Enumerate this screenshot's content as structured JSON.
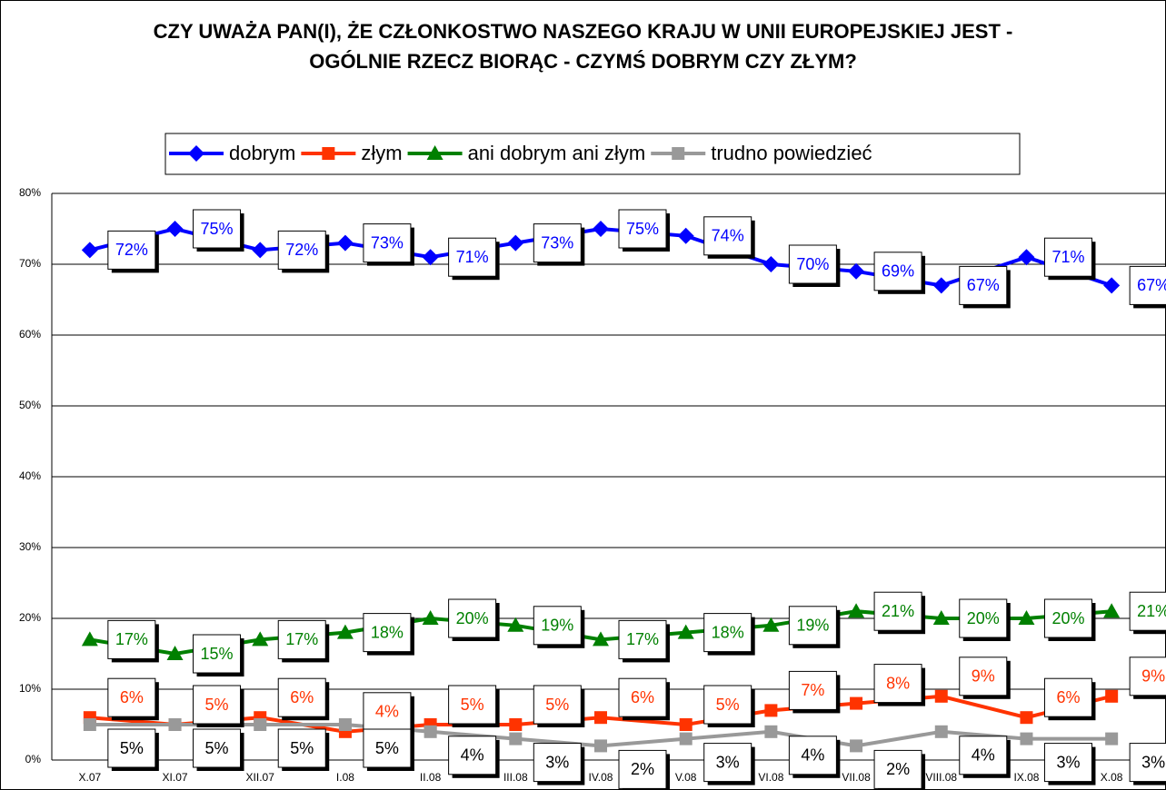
{
  "chart_data": {
    "type": "line",
    "title": "CZY UWAŻA PAN(I), ŻE CZŁONKOSTWO NASZEGO KRAJU  W UNII EUROPEJSKIEJ JEST - OGÓLNIE RZECZ BIORĄC - CZYMŚ DOBRYM CZY ZŁYM?",
    "categories": [
      "X.07",
      "XI.07",
      "XII.07",
      "I.08",
      "II.08",
      "III.08",
      "IV.08",
      "V.08",
      "VI.08",
      "VII.08",
      "VIII.08",
      "IX.08",
      "X.08"
    ],
    "series": [
      {
        "name": "dobrym",
        "color": "#0000ff",
        "marker": "diamond",
        "label_color": "#0000ff",
        "values": [
          72,
          75,
          72,
          73,
          71,
          73,
          75,
          74,
          70,
          69,
          67,
          71,
          67
        ],
        "value_labels": [
          "72%",
          "75%",
          "72%",
          "73%",
          "71%",
          "73%",
          "75%",
          "74%",
          "70%",
          "69%",
          "67%",
          "71%",
          "67%"
        ]
      },
      {
        "name": "złym",
        "color": "#ff3300",
        "marker": "square",
        "label_color": "#ff3300",
        "values": [
          6,
          5,
          6,
          4,
          5,
          5,
          6,
          5,
          7,
          8,
          9,
          6,
          9
        ],
        "value_labels": [
          "6%",
          "5%",
          "6%",
          "4%",
          "5%",
          "5%",
          "6%",
          "5%",
          "7%",
          "8%",
          "9%",
          "6%",
          "9%"
        ]
      },
      {
        "name": "ani dobrym ani złym",
        "color": "#008000",
        "marker": "triangle",
        "label_color": "#008000",
        "values": [
          17,
          15,
          17,
          18,
          20,
          19,
          17,
          18,
          19,
          21,
          20,
          20,
          21
        ],
        "value_labels": [
          "17%",
          "15%",
          "17%",
          "18%",
          "20%",
          "19%",
          "17%",
          "18%",
          "19%",
          "21%",
          "20%",
          "20%",
          "21%"
        ]
      },
      {
        "name": "trudno powiedzieć",
        "color": "#999999",
        "marker": "square",
        "label_color": "#000000",
        "values": [
          5,
          5,
          5,
          5,
          4,
          3,
          2,
          3,
          4,
          2,
          4,
          3,
          3
        ],
        "value_labels": [
          "5%",
          "5%",
          "5%",
          "5%",
          "4%",
          "3%",
          "2%",
          "3%",
          "4%",
          "2%",
          "4%",
          "3%",
          "3%"
        ]
      }
    ],
    "ylim": [
      0,
      80
    ],
    "yticks": [
      {
        "value": 0,
        "label": "0%"
      },
      {
        "value": 10,
        "label": "10%"
      },
      {
        "value": 20,
        "label": "20%"
      },
      {
        "value": 30,
        "label": "30%"
      },
      {
        "value": 40,
        "label": "40%"
      },
      {
        "value": 50,
        "label": "50%"
      },
      {
        "value": 60,
        "label": "60%"
      },
      {
        "value": 70,
        "label": "70%"
      },
      {
        "value": 80,
        "label": "80%"
      }
    ],
    "grid": true
  }
}
